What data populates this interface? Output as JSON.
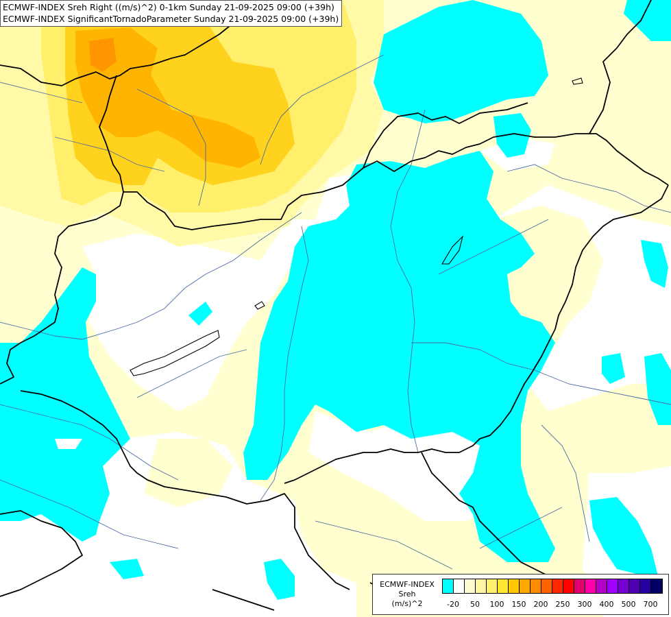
{
  "title": {
    "line1": "ECMWF-INDEX Sreh Right ((m/s)^2) 0-1km Sunday 21-09-2025 09:00 (+39h)",
    "line2": "ECMWF-INDEX SignificantTornadoParameter Sunday 21-09-2025 09:00 (+39h)"
  },
  "legend": {
    "title_line1": "ECMWF-INDEX",
    "title_line2": "Sreh",
    "title_line3": "(m/s)^2",
    "colors": [
      "#00ffff",
      "#ffffff",
      "#fffbd0",
      "#fff5a0",
      "#fff06e",
      "#ffe830",
      "#ffc800",
      "#ffa800",
      "#ff8c00",
      "#ff6400",
      "#ff2800",
      "#ff0000",
      "#e0006e",
      "#ff00aa",
      "#b400c8",
      "#a000ff",
      "#7800d2",
      "#5000b4",
      "#2800a0",
      "#000064"
    ],
    "ticks": [
      "-20",
      "50",
      "100",
      "150",
      "200",
      "250",
      "300",
      "400",
      "500",
      "700"
    ]
  },
  "map": {
    "field_colors": {
      "cyan": "#00ffff",
      "light_yellow": "#ffffd0",
      "pale_yellow": "#fff9a8",
      "yellow": "#ffef6a",
      "gold": "#ffd21e",
      "orange": "#ffb400",
      "deep_orange": "#ff9600"
    },
    "border_color": "#000000",
    "river_color": "#4a6aa0"
  }
}
